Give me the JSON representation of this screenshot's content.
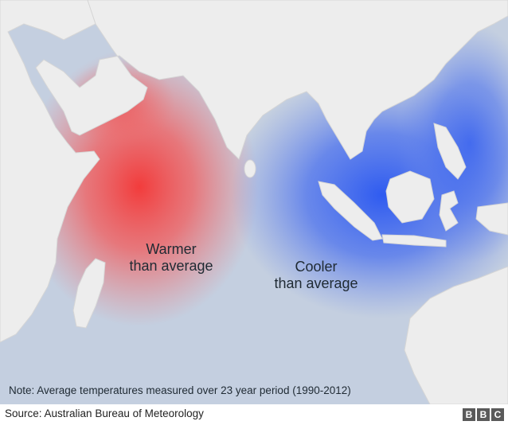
{
  "map": {
    "labels": {
      "warm_line1": "Warmer",
      "warm_line2": "than average",
      "cool_line1": "Cooler",
      "cool_line2": "than average"
    },
    "note": "Note: Average temperatures measured over 23 year period (1990-2012)",
    "colors": {
      "ocean": "#c4cfe0",
      "land": "#ededed",
      "warm": "#f23c3c",
      "cool": "#2f5bf0"
    }
  },
  "footer": {
    "source": "Source: Australian Bureau of Meteorology",
    "logo_letters": [
      "B",
      "B",
      "C"
    ]
  }
}
